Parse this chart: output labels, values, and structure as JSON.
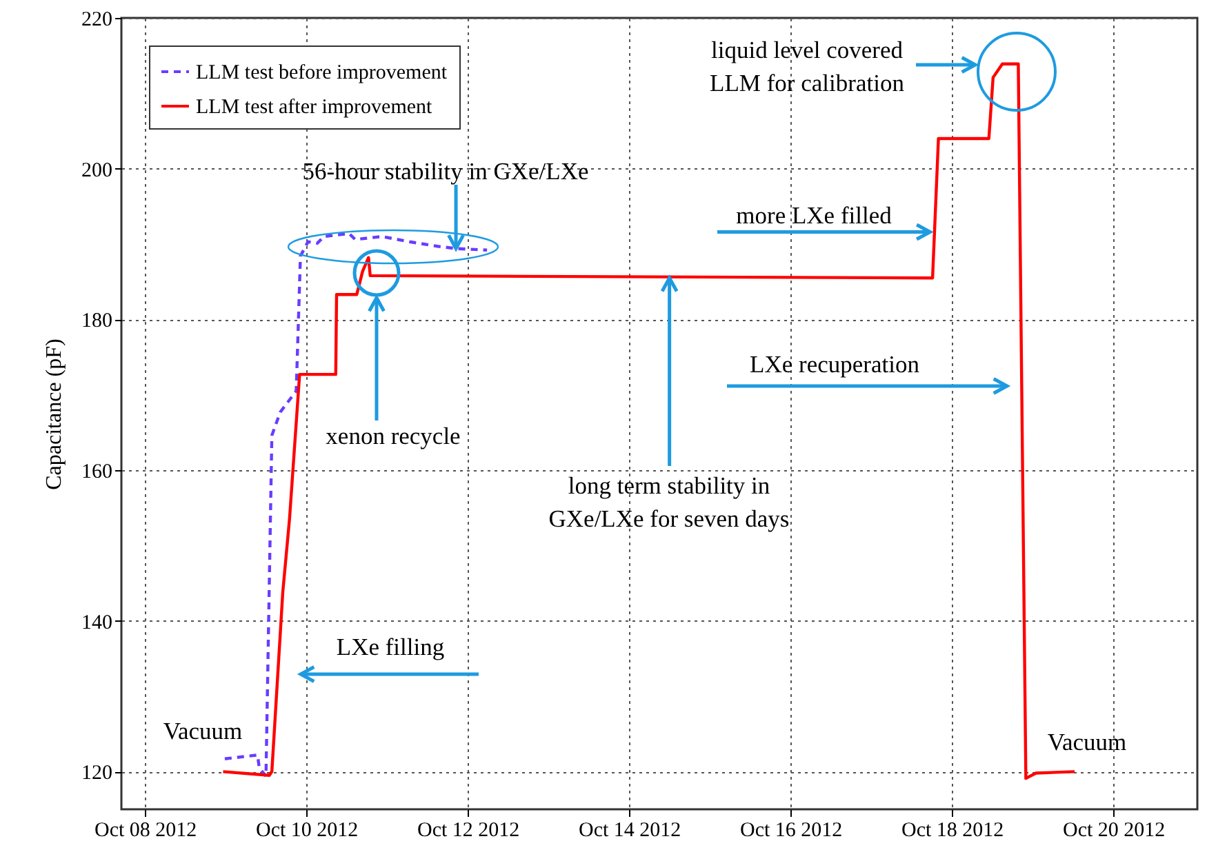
{
  "chart_data": {
    "type": "line",
    "ylabel": "Capacitance (pF)",
    "xlim": [
      "2012-10-07T17:00",
      "2012-10-21T01:00"
    ],
    "xticks": [
      {
        "value": "2012-10-08",
        "label": "Oct 08 2012"
      },
      {
        "value": "2012-10-10",
        "label": "Oct 10 2012"
      },
      {
        "value": "2012-10-12",
        "label": "Oct 12 2012"
      },
      {
        "value": "2012-10-14",
        "label": "Oct 14 2012"
      },
      {
        "value": "2012-10-16",
        "label": "Oct 16 2012"
      },
      {
        "value": "2012-10-18",
        "label": "Oct 18 2012"
      },
      {
        "value": "2012-10-20",
        "label": "Oct 20 2012"
      }
    ],
    "ylim": [
      115,
      220
    ],
    "yticks": [
      120,
      140,
      160,
      180,
      200,
      220
    ],
    "grid": true,
    "legend": "top left",
    "series": [
      {
        "name": "LLM test before improvement",
        "color": "#6a3cff",
        "line_style": "dashed",
        "x": [
          "2012-10-08T23:45",
          "2012-10-09T09:30",
          "2012-10-09T10:00",
          "2012-10-09T12:00",
          "2012-10-09T13:45",
          "2012-10-09T16:15",
          "2012-10-09T21:00",
          "2012-10-09T22:15",
          "2012-10-10T00:30",
          "2012-10-10T03:15",
          "2012-10-10T05:15",
          "2012-10-10T12:45",
          "2012-10-10T14:30",
          "2012-10-10T22:30",
          "2012-10-11T06:45",
          "2012-10-11T15:00",
          "2012-10-11T20:30",
          "2012-10-12T05:45"
        ],
        "values": [
          121.7,
          122.2,
          120.5,
          119.4,
          164.6,
          167.7,
          170.5,
          188.4,
          190.3,
          190.1,
          191,
          191.4,
          190.6,
          191,
          190.3,
          189.7,
          189.4,
          189.2
        ]
      },
      {
        "name": "LLM test after improvement",
        "color": "#ff0000",
        "line_style": "solid",
        "x": [
          "2012-10-08T23:15",
          "2012-10-09T13:00",
          "2012-10-09T13:45",
          "2012-10-09T17:00",
          "2012-10-09T19:00",
          "2012-10-09T22:00",
          "2012-10-10T08:45",
          "2012-10-10T09:00",
          "2012-10-10T15:00",
          "2012-10-10T16:45",
          "2012-10-10T18:30",
          "2012-10-10T19:00",
          "2012-10-17T18:15",
          "2012-10-17T20:00",
          "2012-10-18T11:00",
          "2012-10-18T12:15",
          "2012-10-18T15:00",
          "2012-10-18T19:45",
          "2012-10-18T22:00",
          "2012-10-19T01:00",
          "2012-10-19T12:30"
        ],
        "values": [
          120,
          119.5,
          120,
          143.8,
          153.5,
          172.7,
          172.7,
          183.3,
          183.3,
          186.4,
          188.2,
          185.8,
          185.5,
          204,
          204,
          212.1,
          213.9,
          213.9,
          119.1,
          119.8,
          120
        ]
      }
    ],
    "annotations": [
      {
        "text": "56-hour stability in GXe/LXe",
        "x": "2012-10-11T20:30",
        "y": 189.4
      },
      "xenon recycle",
      "LXe filling",
      "Vacuum",
      {
        "text": "long term stability in\nGXe/LXe for seven days",
        "x": "2012-10-14T12:00",
        "y": 185.5
      },
      {
        "text": "more LXe filled",
        "x": "2012-10-17T17:30",
        "y": 191.6
      },
      "LXe recuperation",
      "liquid level covered\nLLM  for calibration",
      "Vacuum"
    ]
  }
}
